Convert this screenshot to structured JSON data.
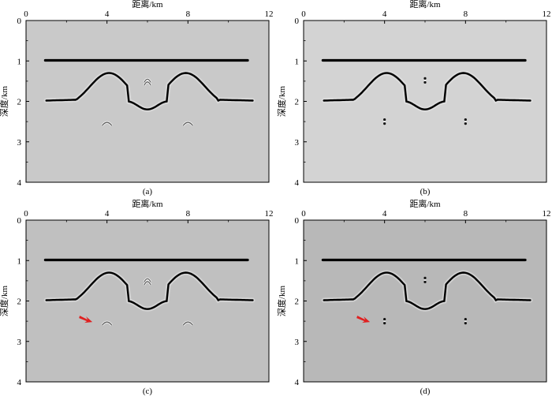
{
  "figure": {
    "panels": [
      {
        "id": "a",
        "caption": "(a)",
        "bg": "#c9c9c9",
        "x_label": "距离/km",
        "y_label": "深度/km",
        "x_ticks": [
          "0",
          "4",
          "8",
          "12"
        ],
        "y_ticks": [
          "0",
          "1",
          "2",
          "3",
          "4"
        ],
        "has_arrow": false,
        "diffraction_style": "arc"
      },
      {
        "id": "b",
        "caption": "(b)",
        "bg": "#d3d3d3",
        "x_label": "距离/km",
        "y_label": "深度/km",
        "x_ticks": [
          "0",
          "4",
          "8",
          "12"
        ],
        "y_ticks": [
          "0",
          "1",
          "2",
          "3",
          "4"
        ],
        "has_arrow": false,
        "diffraction_style": "point"
      },
      {
        "id": "c",
        "caption": "(c)",
        "bg": "#c0c0c0",
        "x_label": "距离/km",
        "y_label": "深度/km",
        "x_ticks": [
          "0",
          "4",
          "8",
          "12"
        ],
        "y_ticks": [
          "0",
          "1",
          "2",
          "3",
          "4"
        ],
        "has_arrow": true,
        "diffraction_style": "arc"
      },
      {
        "id": "d",
        "caption": "(d)",
        "bg": "#b8b8b8",
        "x_label": "距离/km",
        "y_label": "深度/km",
        "x_ticks": [
          "0",
          "4",
          "8",
          "12"
        ],
        "y_ticks": [
          "0",
          "1",
          "2",
          "3",
          "4"
        ],
        "has_arrow": true,
        "diffraction_style": "point"
      }
    ],
    "colors": {
      "arrow": "#e02020",
      "reflector": "#000000",
      "halo": "#ffffff"
    }
  }
}
